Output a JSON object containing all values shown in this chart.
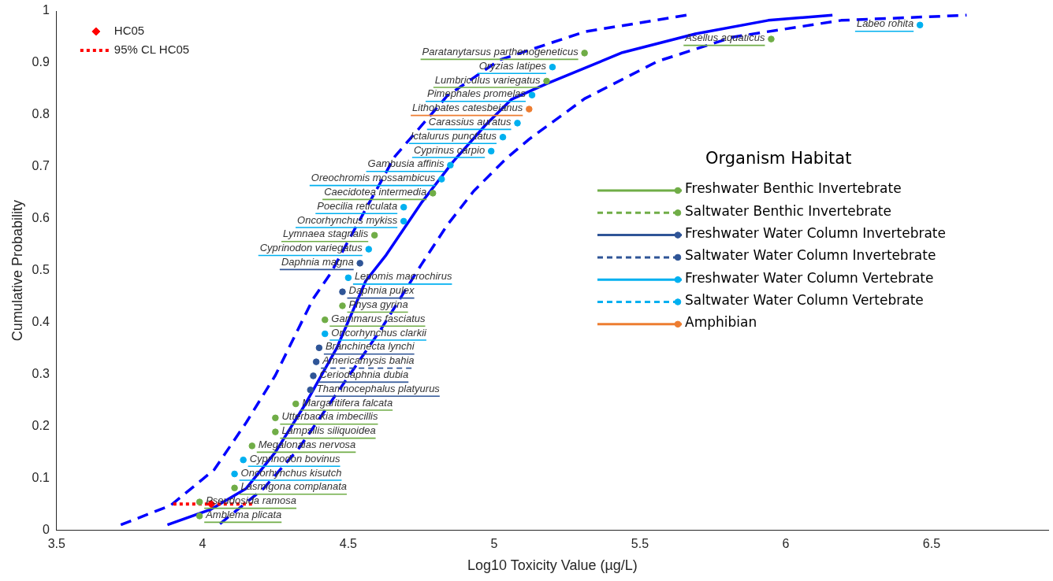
{
  "chart_data": {
    "type": "scatter",
    "xlabel": "Log10 Toxicity Value (µg/L)",
    "ylabel": "Cumulative Probability",
    "legend_title": "Organism Habitat",
    "xlim": [
      3.5,
      6.9
    ],
    "xticks": [
      3.5,
      4,
      4.5,
      5,
      5.5,
      6,
      6.5
    ],
    "ylim": [
      0,
      1
    ],
    "yticks": [
      0,
      0.1,
      0.2,
      0.3,
      0.4,
      0.5,
      0.6,
      0.7,
      0.8,
      0.9,
      1
    ],
    "grid": false,
    "legend": "top left",
    "series": [
      {
        "name": "HC05",
        "type": "scatter",
        "marker": "diamond",
        "color": "#ff0000",
        "x": [
          4.03
        ],
        "values": [
          0.05
        ]
      },
      {
        "name": "95% CL HC05",
        "type": "line",
        "line_style": "dotted",
        "color": "#ff0000",
        "x": [
          3.9,
          4.17
        ],
        "values": [
          0.05,
          0.05
        ]
      },
      {
        "type": "line",
        "line_style": "solid",
        "color": "#0000ff",
        "x": [
          3.88,
          4.03,
          4.15,
          4.25,
          4.35,
          4.46,
          4.56,
          4.63,
          4.75,
          4.86,
          4.97,
          5.06,
          5.18,
          5.44,
          5.69,
          5.94,
          6.16
        ],
        "values": [
          0.01,
          0.04,
          0.08,
          0.15,
          0.24,
          0.35,
          0.48,
          0.53,
          0.63,
          0.71,
          0.78,
          0.83,
          0.86,
          0.92,
          0.956,
          0.982,
          0.992
        ]
      },
      {
        "type": "line",
        "line_style": "dashed",
        "color": "#0000ff",
        "x": [
          3.72,
          3.89,
          4.04,
          4.15,
          4.25,
          4.38,
          4.44,
          4.53,
          4.66,
          4.84,
          5.02,
          5.31,
          5.66
        ],
        "values": [
          0.01,
          0.047,
          0.116,
          0.207,
          0.298,
          0.446,
          0.495,
          0.588,
          0.72,
          0.837,
          0.906,
          0.96,
          0.992
        ]
      },
      {
        "type": "line",
        "line_style": "dashed",
        "color": "#0000ff",
        "x": [
          4.06,
          4.21,
          4.33,
          4.48,
          4.61,
          4.75,
          4.84,
          4.93,
          5.04,
          5.12,
          5.31,
          5.56,
          5.82,
          6.19,
          6.62
        ],
        "values": [
          0.012,
          0.08,
          0.157,
          0.279,
          0.385,
          0.511,
          0.588,
          0.653,
          0.715,
          0.753,
          0.831,
          0.903,
          0.95,
          0.982,
          0.992
        ]
      },
      {
        "name": "Freshwater Benthic Invertebrate",
        "type": "scatter",
        "marker": "circle",
        "line_style": "solid",
        "color": "#70ad47",
        "x": [
          3.99,
          3.99,
          4.11,
          4.17,
          4.25,
          4.25,
          4.32,
          4.42,
          4.48,
          4.59,
          4.79,
          5.18,
          5.31,
          5.95
        ],
        "values": [
          0.027,
          0.054,
          0.081,
          0.162,
          0.189,
          0.216,
          0.243,
          0.405,
          0.432,
          0.568,
          0.649,
          0.865,
          0.919,
          0.946
        ]
      },
      {
        "name": "Saltwater Benthic Invertebrate",
        "type": "scatter",
        "marker": "circle",
        "line_style": "dashed",
        "color": "#70ad47"
      },
      {
        "name": "Freshwater Water Column Invertebrate",
        "type": "scatter",
        "marker": "circle",
        "line_style": "solid",
        "color": "#2f5597",
        "x": [
          4.37,
          4.38,
          4.4,
          4.48,
          4.54
        ],
        "values": [
          0.27,
          0.297,
          0.351,
          0.459,
          0.514
        ]
      },
      {
        "name": "Saltwater Water Column Invertebrate",
        "type": "scatter",
        "marker": "circle",
        "line_style": "dashed",
        "color": "#2f5597",
        "x": [
          4.39
        ],
        "values": [
          0.324
        ]
      },
      {
        "name": "Freshwater Water Column Vertebrate",
        "type": "scatter",
        "marker": "circle",
        "line_style": "solid",
        "color": "#00b0f0",
        "x": [
          4.11,
          4.14,
          4.42,
          4.5,
          4.57,
          4.69,
          4.69,
          4.82,
          4.85,
          4.99,
          5.03,
          5.08,
          5.13,
          5.2,
          6.46
        ],
        "values": [
          0.108,
          0.135,
          0.378,
          0.486,
          0.541,
          0.595,
          0.622,
          0.676,
          0.703,
          0.73,
          0.757,
          0.784,
          0.838,
          0.892,
          0.973
        ]
      },
      {
        "name": "Saltwater Water Column Vertebrate",
        "type": "scatter",
        "marker": "circle",
        "line_style": "dashed",
        "color": "#00b0f0"
      },
      {
        "name": "Amphibian",
        "type": "scatter",
        "marker": "circle",
        "line_style": "solid",
        "color": "#ed7d31",
        "x": [
          5.12
        ],
        "values": [
          0.811
        ]
      }
    ],
    "annotations": [
      {
        "text": "Labeo rohita",
        "x": 6.46,
        "y": 0.973
      },
      {
        "text": "Asellus aquaticus",
        "x": 5.95,
        "y": 0.946
      },
      {
        "text": "Paratanytarsus parthenogeneticus",
        "x": 5.31,
        "y": 0.919
      },
      {
        "text": "Oryzias latipes",
        "x": 5.2,
        "y": 0.892
      },
      {
        "text": "Lumbriculus variegatus",
        "x": 5.18,
        "y": 0.865
      },
      {
        "text": "Pimephales promelas",
        "x": 5.13,
        "y": 0.838
      },
      {
        "text": "Lithobates catesbeianus",
        "x": 5.12,
        "y": 0.811
      },
      {
        "text": "Carassius auratus",
        "x": 5.08,
        "y": 0.784
      },
      {
        "text": "Ictalurus punctatus",
        "x": 5.03,
        "y": 0.757
      },
      {
        "text": "Cyprinus carpio",
        "x": 4.99,
        "y": 0.73
      },
      {
        "text": "Gambusia affinis",
        "x": 4.85,
        "y": 0.703
      },
      {
        "text": "Oreochromis mossambicus",
        "x": 4.82,
        "y": 0.676
      },
      {
        "text": "Caecidotea intermedia",
        "x": 4.79,
        "y": 0.649
      },
      {
        "text": "Poecilia reticulata",
        "x": 4.69,
        "y": 0.622
      },
      {
        "text": "Oncorhynchus mykiss",
        "x": 4.69,
        "y": 0.595
      },
      {
        "text": "Lymnaea stagnalis",
        "x": 4.59,
        "y": 0.568
      },
      {
        "text": "Cyprinodon variegatus",
        "x": 4.57,
        "y": 0.541
      },
      {
        "text": "Daphnia magna",
        "x": 4.54,
        "y": 0.514
      },
      {
        "text": "Lepomis macrochirus",
        "x": 4.5,
        "y": 0.486
      },
      {
        "text": "Daphnia pulex",
        "x": 4.48,
        "y": 0.459
      },
      {
        "text": "Physa gyrina",
        "x": 4.48,
        "y": 0.432
      },
      {
        "text": "Gammarus fasciatus",
        "x": 4.42,
        "y": 0.405
      },
      {
        "text": "Oncorhynchus clarkii",
        "x": 4.42,
        "y": 0.378
      },
      {
        "text": "Branchinecta lynchi",
        "x": 4.4,
        "y": 0.351
      },
      {
        "text": "Americamysis bahia",
        "x": 4.39,
        "y": 0.324
      },
      {
        "text": "Ceriodaphnia dubia",
        "x": 4.38,
        "y": 0.297
      },
      {
        "text": "Thamnocephalus platyurus",
        "x": 4.37,
        "y": 0.27
      },
      {
        "text": "Margaritifera falcata",
        "x": 4.32,
        "y": 0.243
      },
      {
        "text": "Utterbackia imbecillis",
        "x": 4.25,
        "y": 0.216
      },
      {
        "text": "Lampsilis siliquoidea",
        "x": 4.25,
        "y": 0.189
      },
      {
        "text": "Megalonaias nervosa",
        "x": 4.17,
        "y": 0.162
      },
      {
        "text": "Cyprinodon bovinus",
        "x": 4.14,
        "y": 0.135
      },
      {
        "text": "Oncorhynchus kisutch",
        "x": 4.11,
        "y": 0.108
      },
      {
        "text": "Lasmigona complanata",
        "x": 4.11,
        "y": 0.081
      },
      {
        "text": "Pseudosida ramosa",
        "x": 3.99,
        "y": 0.054
      },
      {
        "text": "Amblema plicata",
        "x": 3.99,
        "y": 0.027
      }
    ]
  }
}
